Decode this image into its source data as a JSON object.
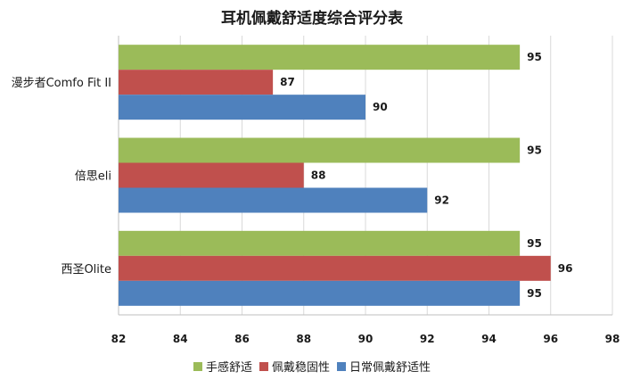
{
  "chart_data": {
    "type": "bar",
    "orientation": "horizontal",
    "title": "耳机佩戴舒适度综合评分表",
    "categories": [
      "漫步者Comfo Fit II",
      "倍思eli",
      "西圣Olite"
    ],
    "series": [
      {
        "name": "手感舒适",
        "color": "#9bbb59",
        "values": [
          95,
          95,
          95
        ]
      },
      {
        "name": "佩戴稳固性",
        "color": "#c0504d",
        "values": [
          87,
          88,
          96
        ]
      },
      {
        "name": "日常佩戴舒适性",
        "color": "#4f81bd",
        "values": [
          90,
          92,
          95
        ]
      }
    ],
    "xlim": [
      82,
      98
    ],
    "xticks": [
      82,
      84,
      86,
      88,
      90,
      92,
      94,
      96,
      98
    ],
    "grid": true,
    "legend_position": "bottom"
  }
}
